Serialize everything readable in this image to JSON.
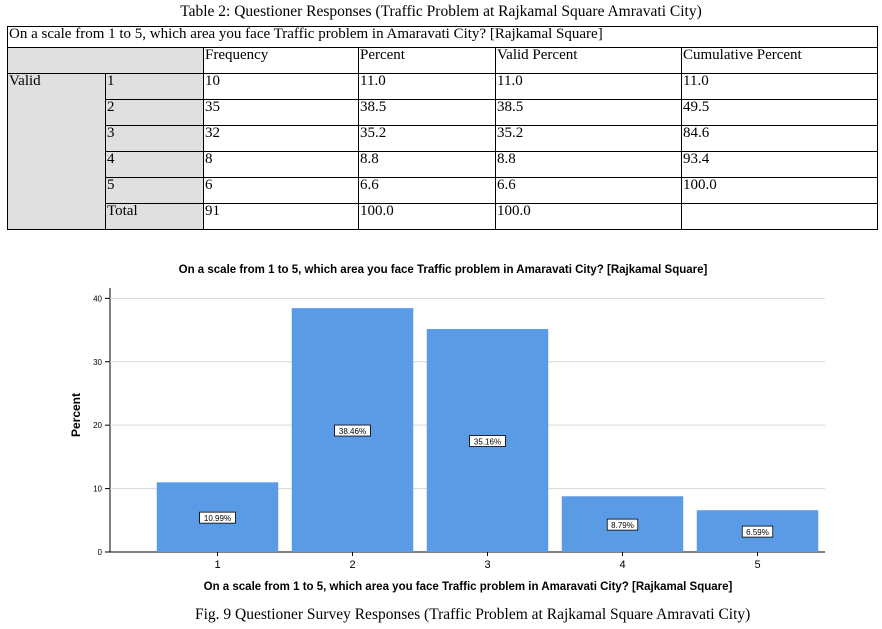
{
  "table": {
    "caption": "Table 2: Questioner Responses (Traffic Problem at Rajkamal Square Amravati City)",
    "question": "On a scale from 1 to 5, which area you face Traffic problem in Amaravati City? [Rajkamal Square]",
    "headers": [
      "Frequency",
      "Percent",
      "Valid Percent",
      "Cumulative Percent"
    ],
    "group_label": "Valid",
    "rows": [
      {
        "label": "1",
        "frequency": "10",
        "percent": "11.0",
        "valid_percent": "11.0",
        "cumulative": "11.0"
      },
      {
        "label": "2",
        "frequency": "35",
        "percent": "38.5",
        "valid_percent": "38.5",
        "cumulative": "49.5"
      },
      {
        "label": "3",
        "frequency": "32",
        "percent": "35.2",
        "valid_percent": "35.2",
        "cumulative": "84.6"
      },
      {
        "label": "4",
        "frequency": "8",
        "percent": "8.8",
        "valid_percent": "8.8",
        "cumulative": "93.4"
      },
      {
        "label": "5",
        "frequency": "6",
        "percent": "6.6",
        "valid_percent": "6.6",
        "cumulative": "100.0"
      },
      {
        "label": "Total",
        "frequency": "91",
        "percent": "100.0",
        "valid_percent": "100.0",
        "cumulative": ""
      }
    ]
  },
  "chart_data": {
    "type": "bar",
    "title": "On a scale from 1 to 5, which area you face Traffic problem in Amaravati City? [Rajkamal Square]",
    "xlabel": "On a scale from 1 to 5, which area you face Traffic problem in Amaravati City? [Rajkamal Square]",
    "ylabel": "Percent",
    "categories": [
      "1",
      "2",
      "3",
      "4",
      "5"
    ],
    "values": [
      10.99,
      38.46,
      35.16,
      8.79,
      6.59
    ],
    "data_labels": [
      "10.99%",
      "38.46%",
      "35.16%",
      "8.79%",
      "6.59%"
    ],
    "yticks": [
      0,
      10,
      20,
      30,
      40
    ],
    "ylim": [
      0,
      41
    ],
    "bar_color": "#5b9be6",
    "grid": true
  },
  "figure_caption": "Fig. 9 Questioner Survey Responses (Traffic Problem at Rajkamal Square Amravati City)"
}
